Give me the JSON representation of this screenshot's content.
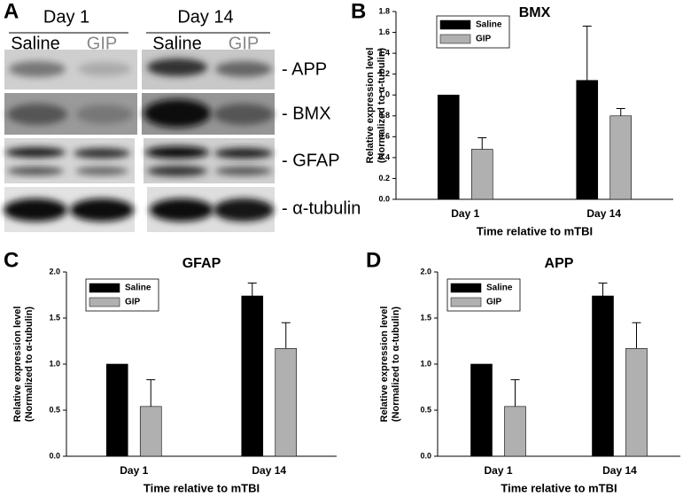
{
  "blot": {
    "panel": "A",
    "days": [
      "Day  1",
      "Day 14"
    ],
    "lanes": [
      "Saline",
      "GIP",
      "Saline",
      "GIP"
    ],
    "rows": [
      "- APP",
      "- BMX",
      "- GFAP",
      "- α-tubulin"
    ]
  },
  "chart_data": [
    {
      "type": "bar",
      "panel": "B",
      "title": "BMX",
      "categories": [
        "Day 1",
        "Day 14"
      ],
      "series": [
        {
          "name": "Saline",
          "color": "#000000",
          "values": [
            1.0,
            1.14
          ],
          "errors": [
            null,
            0.52
          ]
        },
        {
          "name": "GIP",
          "color": "#b0b0b0",
          "values": [
            0.48,
            0.8
          ],
          "errors": [
            0.11,
            0.07
          ]
        }
      ],
      "ylim": [
        0,
        1.8
      ],
      "yticks": [
        {
          "value": 0,
          "label": "0.0"
        },
        0.2,
        0.4,
        0.6,
        0.8,
        {
          "value": 1,
          "label": "1.0"
        },
        1.2,
        1.4,
        1.6,
        1.8
      ],
      "ylabel": [
        "Relative expression level",
        "(Normalized to α-tubulin)"
      ],
      "xlabel": "Time relative to mTBI"
    },
    {
      "type": "bar",
      "panel": "C",
      "title": "GFAP",
      "categories": [
        "Day 1",
        "Day 14"
      ],
      "series": [
        {
          "name": "Saline",
          "color": "#000000",
          "values": [
            1.0,
            1.74
          ],
          "errors": [
            null,
            0.14
          ]
        },
        {
          "name": "GIP",
          "color": "#b0b0b0",
          "values": [
            0.54,
            1.17
          ],
          "errors": [
            0.29,
            0.28
          ]
        }
      ],
      "ylim": [
        0,
        2
      ],
      "yticks": [
        {
          "value": 0,
          "label": "0.0"
        },
        0.5,
        {
          "value": 1,
          "label": "1.0"
        },
        1.5,
        {
          "value": 2,
          "label": "2.0"
        }
      ],
      "ylabel": [
        "Relative expression level",
        "(Normalized to α-tubulin)"
      ],
      "xlabel": "Time relative to mTBI"
    },
    {
      "type": "bar",
      "panel": "D",
      "title": "APP",
      "categories": [
        "Day 1",
        "Day 14"
      ],
      "series": [
        {
          "name": "Saline",
          "color": "#000000",
          "values": [
            1.0,
            1.74
          ],
          "errors": [
            null,
            0.14
          ]
        },
        {
          "name": "GIP",
          "color": "#b0b0b0",
          "values": [
            0.54,
            1.17
          ],
          "errors": [
            0.29,
            0.28
          ]
        }
      ],
      "ylim": [
        0,
        2
      ],
      "yticks": [
        {
          "value": 0,
          "label": "0.0"
        },
        0.5,
        {
          "value": 1,
          "label": "1.0"
        },
        1.5,
        {
          "value": 2,
          "label": "2.0"
        }
      ],
      "ylabel": [
        "Relative expression level",
        "(Normalized to α-tubulin)"
      ],
      "xlabel": "Time relative to mTBI"
    }
  ]
}
